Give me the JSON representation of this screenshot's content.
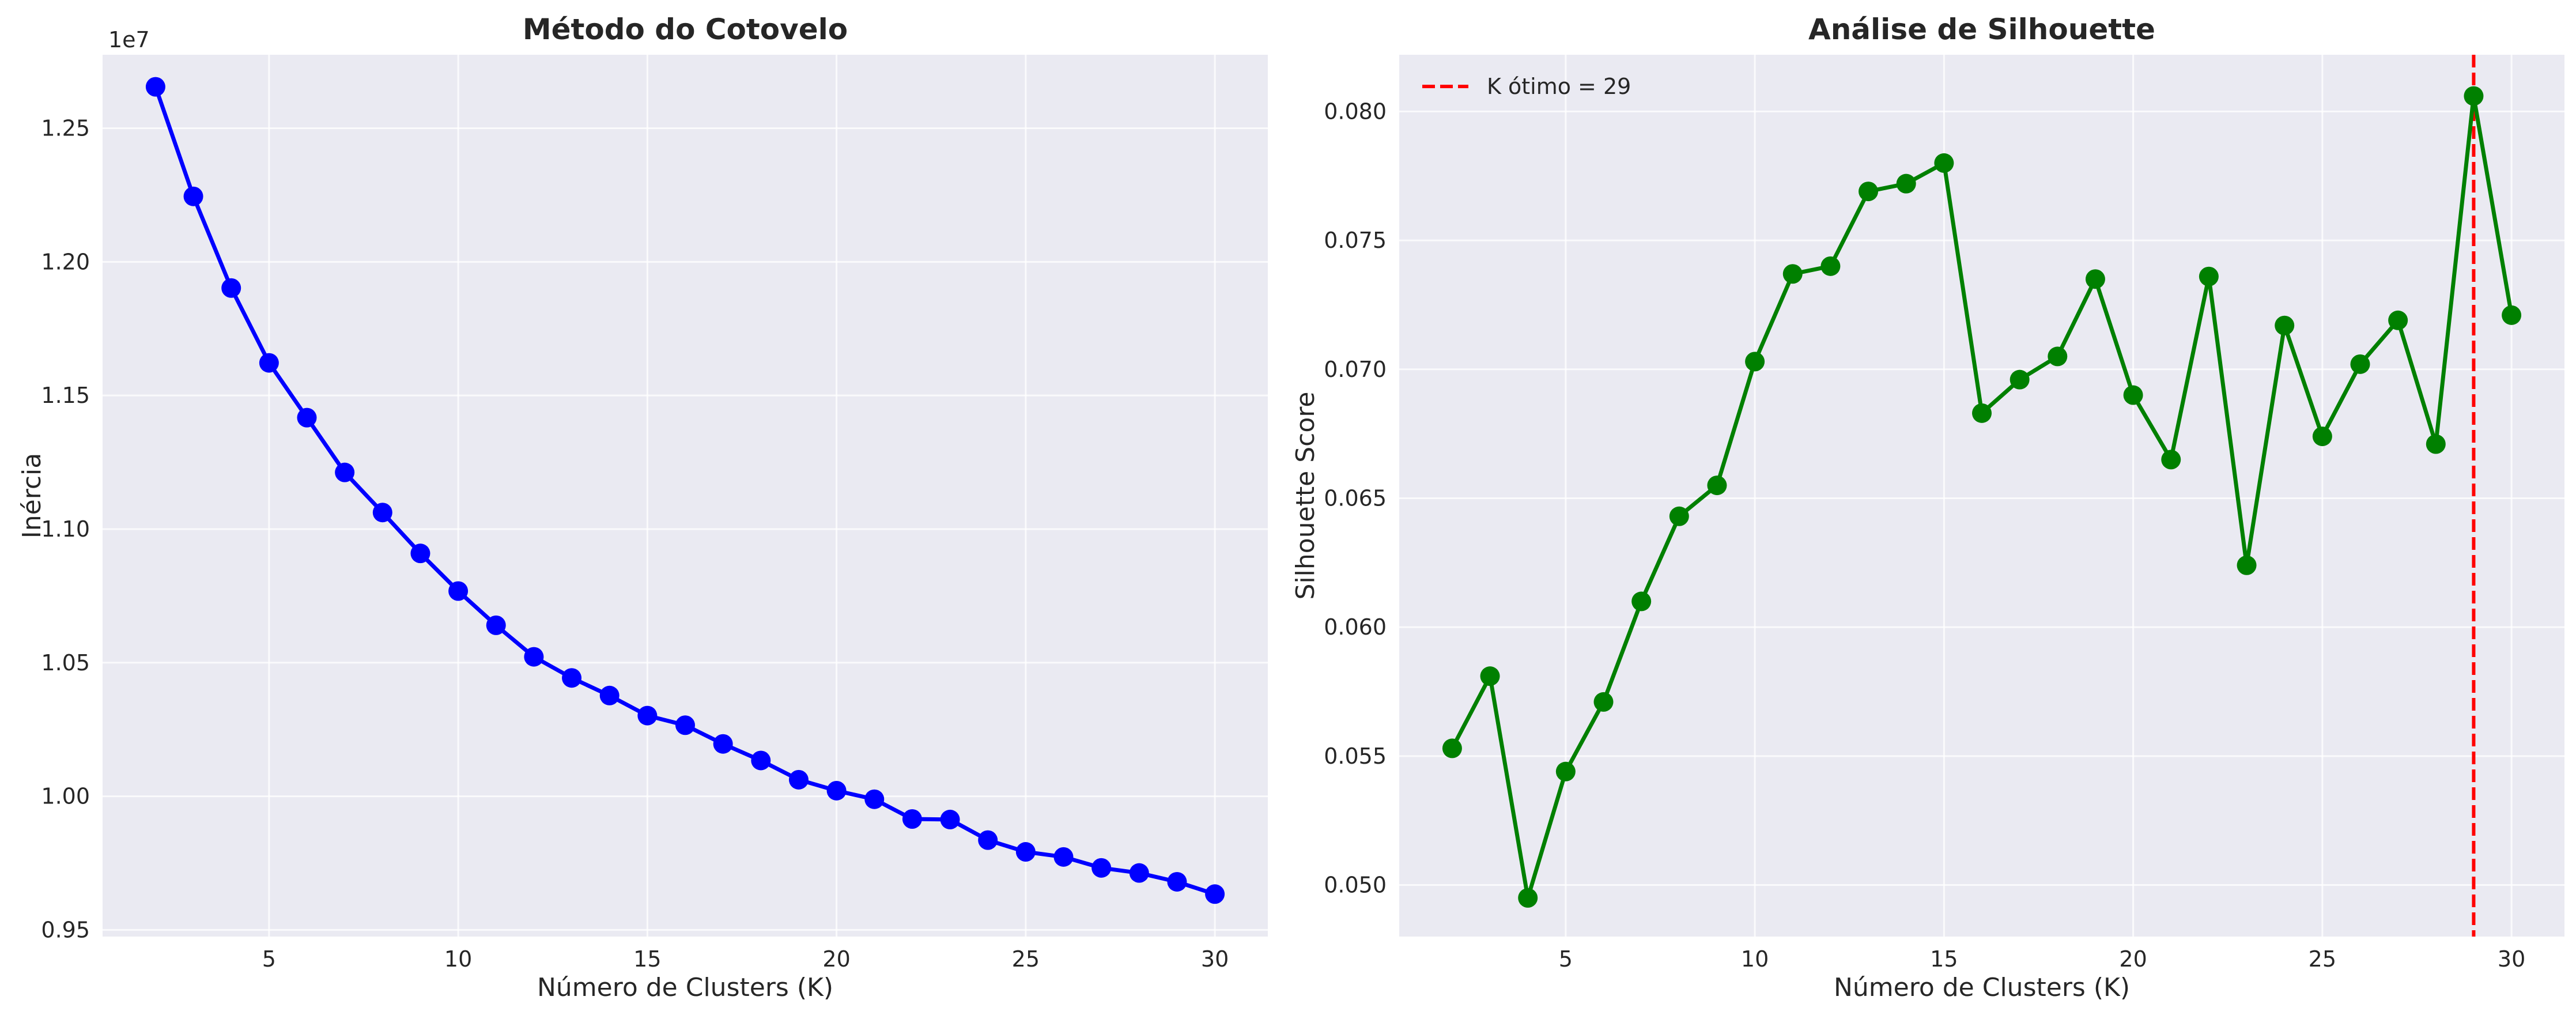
{
  "chart_data": [
    {
      "type": "line",
      "title": "Método do Cotovelo",
      "xlabel": "Número de Clusters (K)",
      "ylabel": "Inércia",
      "offset_text": "1e7",
      "xlim": [
        0.6,
        31.4
      ],
      "ylim": [
        0.9475,
        1.2775
      ],
      "xticks": [
        5,
        10,
        15,
        20,
        25,
        30
      ],
      "yticks": [
        0.95,
        1.0,
        1.05,
        1.1,
        1.15,
        1.2,
        1.25
      ],
      "ytick_labels": [
        "0.95",
        "1.00",
        "1.05",
        "1.10",
        "1.15",
        "1.20",
        "1.25"
      ],
      "grid": true,
      "color": "#0000ff",
      "x": [
        2,
        3,
        4,
        5,
        6,
        7,
        8,
        9,
        10,
        11,
        12,
        13,
        14,
        15,
        16,
        17,
        18,
        19,
        20,
        21,
        22,
        23,
        24,
        25,
        26,
        27,
        28,
        29,
        30
      ],
      "values": [
        1.2655,
        1.2245,
        1.1902,
        1.1622,
        1.1417,
        1.1212,
        1.1062,
        1.0909,
        1.0768,
        1.064,
        1.0522,
        1.0443,
        1.0377,
        1.0302,
        1.0266,
        1.0196,
        1.0134,
        1.0062,
        1.0021,
        0.9989,
        0.9915,
        0.9913,
        0.9836,
        0.9792,
        0.9773,
        0.9732,
        0.9713,
        0.968,
        0.9634
      ]
    },
    {
      "type": "line",
      "title": "Análise de Silhouette",
      "xlabel": "Número de Clusters (K)",
      "ylabel": "Silhouette Score",
      "xlim": [
        0.6,
        31.4
      ],
      "ylim": [
        0.048,
        0.0822
      ],
      "xticks": [
        5,
        10,
        15,
        20,
        25,
        30
      ],
      "yticks": [
        0.05,
        0.055,
        0.06,
        0.065,
        0.07,
        0.075,
        0.08
      ],
      "ytick_labels": [
        "0.050",
        "0.055",
        "0.060",
        "0.065",
        "0.070",
        "0.075",
        "0.080"
      ],
      "grid": true,
      "color": "#008000",
      "x": [
        2,
        3,
        4,
        5,
        6,
        7,
        8,
        9,
        10,
        11,
        12,
        13,
        14,
        15,
        16,
        17,
        18,
        19,
        20,
        21,
        22,
        23,
        24,
        25,
        26,
        27,
        28,
        29,
        30
      ],
      "values": [
        0.0553,
        0.0581,
        0.0495,
        0.0544,
        0.0571,
        0.061,
        0.0643,
        0.0655,
        0.0703,
        0.0737,
        0.074,
        0.0769,
        0.0772,
        0.078,
        0.0683,
        0.0696,
        0.0705,
        0.0735,
        0.069,
        0.0665,
        0.0736,
        0.0624,
        0.0717,
        0.0674,
        0.0702,
        0.0719,
        0.0671,
        0.0806,
        0.0721
      ],
      "vline": {
        "x": 29,
        "color": "#ff0000",
        "label": "K ótimo = 29"
      },
      "legend_position": "top-left"
    }
  ]
}
